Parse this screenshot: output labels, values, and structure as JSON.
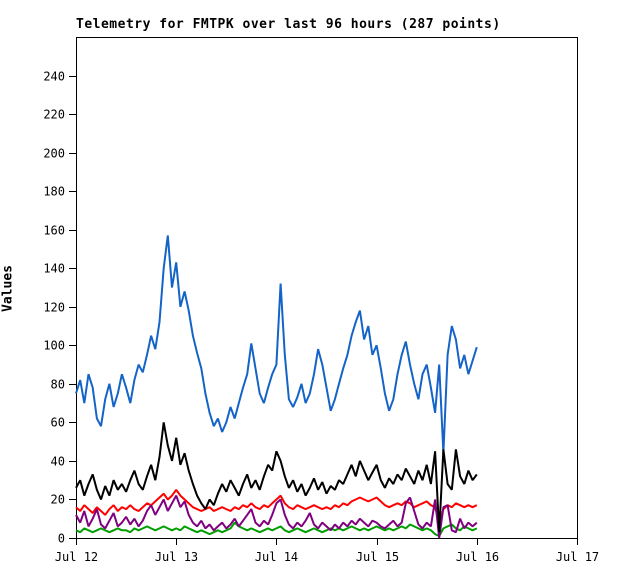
{
  "chart_data": {
    "type": "line",
    "title": "Telemetry for FMTPK over last 96 hours (287 points)",
    "ylabel": "Values",
    "xlabel": "",
    "ylim": [
      0,
      260
    ],
    "yticks": [
      0,
      20,
      40,
      60,
      80,
      100,
      120,
      140,
      160,
      180,
      200,
      220,
      240
    ],
    "x_total_days": 5,
    "x_unit": "hours since Jul 12 00:00",
    "x_step_hours": 1,
    "xticks": [
      {
        "day": 0,
        "label": "Jul 12"
      },
      {
        "day": 1,
        "label": "Jul 13"
      },
      {
        "day": 2,
        "label": "Jul 14"
      },
      {
        "day": 3,
        "label": "Jul 15"
      },
      {
        "day": 4,
        "label": "Jul 16"
      },
      {
        "day": 5,
        "label": "Jul 17"
      }
    ],
    "grid": false,
    "legend": "none",
    "frame_color": "#000000",
    "background_color": "#ffffff",
    "series": [
      {
        "name": "blue",
        "color": "#1464C8",
        "values": [
          75,
          82,
          70,
          85,
          78,
          62,
          58,
          72,
          80,
          68,
          75,
          85,
          78,
          70,
          82,
          90,
          86,
          95,
          105,
          98,
          112,
          140,
          157,
          130,
          143,
          120,
          128,
          118,
          105,
          96,
          88,
          75,
          65,
          58,
          62,
          55,
          60,
          68,
          62,
          70,
          78,
          85,
          101,
          88,
          75,
          70,
          78,
          85,
          90,
          132,
          95,
          72,
          68,
          73,
          80,
          70,
          75,
          85,
          98,
          90,
          78,
          66,
          72,
          80,
          88,
          95,
          105,
          112,
          118,
          103,
          110,
          95,
          100,
          88,
          75,
          66,
          72,
          85,
          95,
          102,
          90,
          80,
          72,
          85,
          90,
          78,
          65,
          90,
          44,
          95,
          110,
          103,
          88,
          95,
          85,
          92,
          99
        ]
      },
      {
        "name": "black",
        "color": "#000000",
        "values": [
          26,
          30,
          22,
          28,
          33,
          25,
          20,
          27,
          22,
          30,
          25,
          28,
          24,
          30,
          35,
          28,
          25,
          32,
          38,
          30,
          42,
          60,
          48,
          40,
          52,
          38,
          44,
          35,
          28,
          22,
          18,
          15,
          20,
          17,
          23,
          28,
          24,
          30,
          26,
          22,
          28,
          33,
          26,
          30,
          25,
          32,
          38,
          35,
          45,
          40,
          32,
          26,
          30,
          24,
          28,
          22,
          26,
          31,
          25,
          29,
          23,
          27,
          25,
          30,
          28,
          33,
          38,
          32,
          40,
          35,
          30,
          34,
          38,
          30,
          26,
          31,
          28,
          33,
          30,
          36,
          32,
          28,
          35,
          30,
          38,
          28,
          45,
          3,
          46,
          28,
          25,
          46,
          32,
          28,
          35,
          30,
          33
        ]
      },
      {
        "name": "red",
        "color": "#FF0000",
        "values": [
          16,
          14,
          17,
          15,
          13,
          16,
          14,
          12,
          15,
          17,
          14,
          16,
          15,
          17,
          15,
          14,
          16,
          18,
          17,
          19,
          21,
          23,
          20,
          22,
          25,
          22,
          20,
          18,
          16,
          15,
          14,
          15,
          16,
          14,
          15,
          16,
          15,
          14,
          16,
          15,
          17,
          16,
          18,
          16,
          15,
          17,
          16,
          18,
          20,
          22,
          18,
          16,
          15,
          17,
          16,
          15,
          16,
          17,
          16,
          15,
          16,
          15,
          17,
          16,
          18,
          17,
          19,
          20,
          21,
          20,
          19,
          20,
          21,
          19,
          17,
          16,
          17,
          18,
          17,
          19,
          18,
          16,
          17,
          18,
          19,
          17,
          16,
          8,
          15,
          17,
          16,
          18,
          17,
          16,
          17,
          16,
          17
        ]
      },
      {
        "name": "purple",
        "color": "#800080",
        "values": [
          12,
          8,
          14,
          6,
          10,
          15,
          7,
          5,
          9,
          13,
          6,
          8,
          11,
          7,
          10,
          6,
          9,
          14,
          17,
          12,
          16,
          20,
          14,
          18,
          22,
          16,
          19,
          12,
          8,
          6,
          9,
          5,
          7,
          4,
          6,
          8,
          5,
          7,
          10,
          6,
          9,
          12,
          15,
          8,
          6,
          9,
          7,
          12,
          18,
          20,
          12,
          7,
          5,
          8,
          6,
          9,
          13,
          7,
          5,
          8,
          6,
          4,
          7,
          5,
          8,
          6,
          9,
          7,
          10,
          8,
          6,
          9,
          8,
          6,
          5,
          7,
          9,
          6,
          8,
          18,
          21,
          14,
          7,
          5,
          8,
          6,
          20,
          0,
          16,
          17,
          4,
          3,
          10,
          5,
          8,
          6,
          8
        ]
      },
      {
        "name": "green",
        "color": "#009E00",
        "values": [
          4,
          3,
          5,
          4,
          3,
          4,
          5,
          4,
          3,
          4,
          5,
          4,
          4,
          3,
          5,
          4,
          5,
          6,
          5,
          4,
          5,
          6,
          5,
          4,
          5,
          4,
          6,
          5,
          4,
          3,
          4,
          3,
          2,
          3,
          4,
          3,
          4,
          5,
          8,
          6,
          5,
          4,
          5,
          4,
          3,
          4,
          5,
          4,
          5,
          6,
          4,
          3,
          4,
          5,
          4,
          3,
          4,
          5,
          4,
          3,
          4,
          5,
          4,
          5,
          4,
          5,
          6,
          5,
          4,
          5,
          4,
          5,
          6,
          5,
          4,
          5,
          4,
          5,
          6,
          5,
          7,
          6,
          5,
          4,
          5,
          4,
          2,
          1,
          5,
          6,
          7,
          5,
          4,
          6,
          5,
          4,
          5
        ]
      }
    ]
  }
}
